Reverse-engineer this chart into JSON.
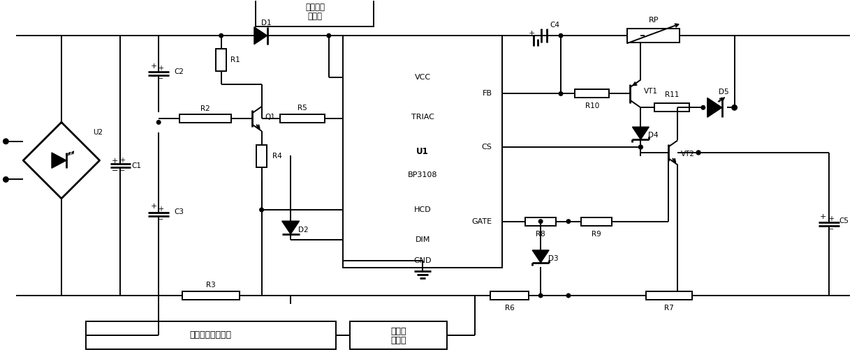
{
  "bg_color": "#ffffff",
  "line_color": "#000000",
  "text_color": "#000000",
  "figsize": [
    12.4,
    5.05
  ],
  "dpi": 100,
  "lw": 1.4,
  "lw_thick": 2.0,
  "labels": {
    "U2": "U2",
    "C1": "C1",
    "C2": "C2",
    "C3": "C3",
    "C4": "C4",
    "C5": "C5",
    "R1": "R1",
    "R2": "R2",
    "R3": "R3",
    "R4": "R4",
    "R5": "R5",
    "R6": "R6",
    "R7": "R7",
    "R8": "R8",
    "R9": "R9",
    "R10": "R10",
    "R11": "R11",
    "RP": "RP",
    "D1": "D1",
    "D2": "D2",
    "D3": "D3",
    "D4": "D4",
    "D5": "D5",
    "Q1": "Q1",
    "VT1": "VT1",
    "VT2": "VT2",
    "U1_line1": "U1",
    "U1_line2": "BP3108",
    "VCC": "VCC",
    "TRIAC": "TRIAC",
    "HCD": "HCD",
    "DIM": "DIM",
    "GND": "GND",
    "FB": "FB",
    "CS": "CS",
    "GATE": "GATE",
    "box1_text": "三极管稳\n压电路",
    "box2_text": "射极驱动增强电路",
    "box3_line1": "滤波放",
    "box3_line2": "大电路"
  }
}
